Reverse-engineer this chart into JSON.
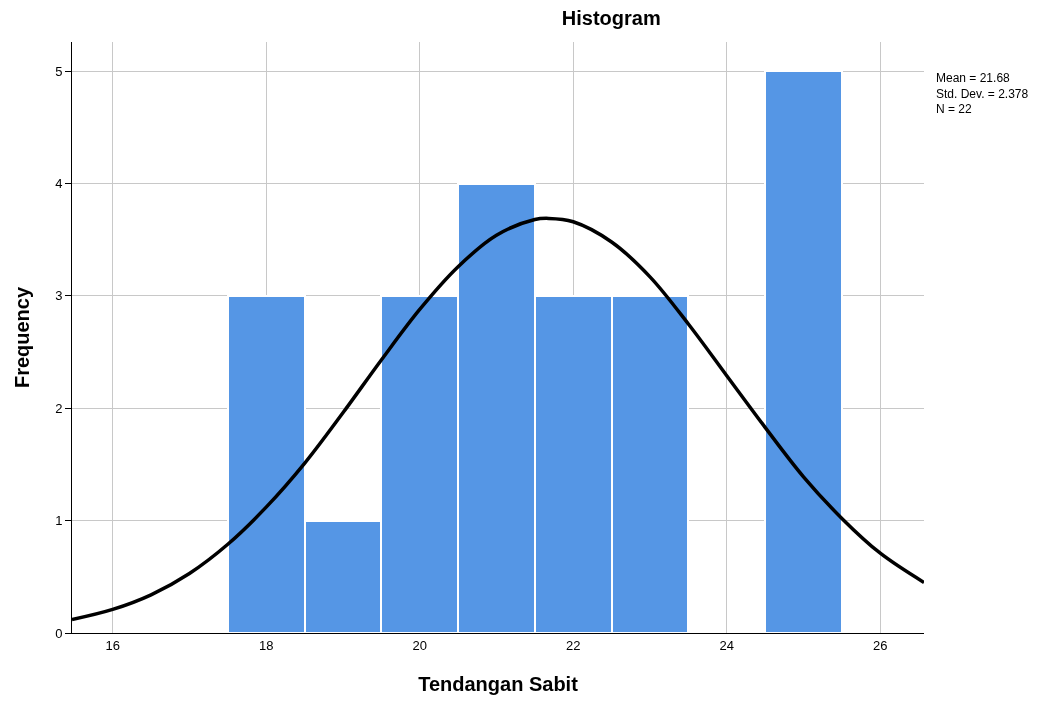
{
  "chart_data": {
    "type": "histogram",
    "title": "Histogram",
    "xlabel": "Tendangan Sabit",
    "ylabel": "Frequency",
    "bins": [
      17.5,
      18.5,
      19.5,
      20.5,
      21.5,
      22.5,
      23.5,
      24.5,
      25.5
    ],
    "values": [
      3,
      1,
      3,
      4,
      3,
      3,
      0,
      5
    ],
    "color": "#5596e5",
    "series": [
      {
        "type": "line",
        "color": "#000000",
        "x": [
          15.47,
          16,
          16.5,
          17,
          17.5,
          18,
          18.5,
          19,
          19.5,
          20,
          20.5,
          21,
          21.5,
          21.68,
          22,
          22.5,
          23,
          23.5,
          24,
          24.5,
          25,
          25.5,
          26,
          26.57
        ],
        "values": [
          0.12,
          0.21,
          0.34,
          0.53,
          0.79,
          1.12,
          1.51,
          1.96,
          2.43,
          2.88,
          3.26,
          3.54,
          3.68,
          3.69,
          3.66,
          3.48,
          3.17,
          2.75,
          2.29,
          1.83,
          1.39,
          1.02,
          0.71,
          0.45
        ]
      }
    ],
    "xlim": [
      15.47,
      26.57
    ],
    "xticks": [
      16,
      18,
      20,
      22,
      24,
      26
    ],
    "ylim": [
      0,
      5.26
    ],
    "yticks": [
      0,
      1,
      2,
      3,
      4,
      5
    ],
    "grid": true,
    "line_style": "solid",
    "marker": "none",
    "annotations": [
      "Mean = 21.68",
      "Std. Dev. = 2.378",
      "N = 22"
    ]
  }
}
